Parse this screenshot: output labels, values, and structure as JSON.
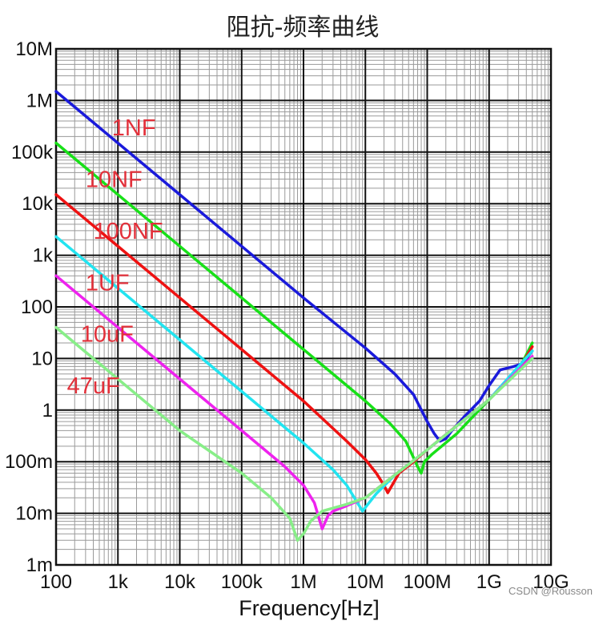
{
  "chart_data": {
    "type": "line",
    "title": "阻抗-频率曲线",
    "xlabel": "Frequency[Hz]",
    "ylabel": "",
    "xscale": "log",
    "yscale": "log",
    "xlim": [
      100,
      10000000000
    ],
    "ylim": [
      0.001,
      10000000
    ],
    "grid": true,
    "x_tick_labels": [
      "100",
      "1k",
      "10k",
      "100k",
      "1M",
      "10M",
      "100M",
      "1G",
      "10G"
    ],
    "y_tick_labels": [
      "1m",
      "10m",
      "100m",
      "1",
      "10",
      "100",
      "1k",
      "10k",
      "100k",
      "1M",
      "10M"
    ],
    "series": [
      {
        "name": "1NF",
        "color": "#1a1adb",
        "x": [
          100,
          10000,
          1000000,
          10000000,
          30000000,
          60000000,
          100000000,
          130000000,
          160000000,
          200000000,
          250000000,
          400000000,
          700000000,
          1000000000,
          1500000000,
          2500000000,
          3500000000,
          5000000000
        ],
        "y": [
          1500000,
          15000,
          150,
          16,
          5,
          2,
          0.6,
          0.35,
          0.25,
          0.28,
          0.4,
          0.75,
          1.5,
          3,
          6,
          7,
          8,
          14
        ]
      },
      {
        "name": "10NF",
        "color": "#18e018",
        "x": [
          100,
          10000,
          1000000,
          10000000,
          25000000,
          45000000,
          60000000,
          70000000,
          80000000,
          90000000,
          120000000,
          300000000,
          1000000000,
          3000000000,
          5000000000
        ],
        "y": [
          150000,
          1500,
          15,
          1.5,
          0.55,
          0.25,
          0.12,
          0.08,
          0.06,
          0.1,
          0.14,
          0.35,
          1.6,
          6,
          20
        ]
      },
      {
        "name": "100NF",
        "color": "#ee1111",
        "x": [
          100,
          10000,
          100000,
          1000000,
          5000000,
          10000000,
          15000000,
          20000000,
          23000000,
          27000000,
          35000000,
          60000000,
          100000000,
          300000000,
          1000000000,
          3000000000,
          5000000000
        ],
        "y": [
          15000,
          150,
          15,
          1.5,
          0.25,
          0.11,
          0.06,
          0.035,
          0.025,
          0.035,
          0.06,
          0.1,
          0.17,
          0.5,
          1.6,
          6,
          17
        ]
      },
      {
        "name": "1UF",
        "color": "#22e4f0",
        "x": [
          100,
          10000,
          100000,
          1000000,
          3000000,
          5000000,
          7000000,
          9000000,
          11000000,
          15000000,
          30000000,
          100000000,
          1000000000,
          5000000000
        ],
        "y": [
          2300,
          23,
          2.3,
          0.23,
          0.07,
          0.035,
          0.018,
          0.011,
          0.015,
          0.024,
          0.055,
          0.17,
          1.6,
          14
        ]
      },
      {
        "name": "10uF",
        "color": "#ee22ee",
        "x": [
          100,
          10000,
          100000,
          500000,
          1000000,
          1500000,
          2000000,
          2500000,
          3000000,
          5000000,
          10000000,
          100000000,
          1000000000,
          5000000000
        ],
        "y": [
          400,
          4,
          0.4,
          0.08,
          0.035,
          0.016,
          0.005,
          0.009,
          0.011,
          0.014,
          0.02,
          0.17,
          1.6,
          11
        ]
      },
      {
        "name": "47uF",
        "color": "#88ee88",
        "x": [
          100,
          10000,
          100000,
          300000,
          600000,
          800000,
          1000000,
          1300000,
          2000000,
          5000000,
          10000000,
          100000000,
          1000000000,
          5000000000
        ],
        "y": [
          40,
          0.4,
          0.06,
          0.02,
          0.008,
          0.003,
          0.004,
          0.007,
          0.011,
          0.015,
          0.02,
          0.17,
          1.6,
          10
        ]
      }
    ],
    "label_positions": [
      {
        "series": "1NF",
        "x": 800,
        "y": 300000
      },
      {
        "series": "10NF",
        "x": 300,
        "y": 30000
      },
      {
        "series": "100NF",
        "x": 400,
        "y": 3000
      },
      {
        "series": "1UF",
        "x": 300,
        "y": 300
      },
      {
        "series": "10uF",
        "x": 250,
        "y": 30
      },
      {
        "series": "47uF",
        "x": 150,
        "y": 3
      }
    ]
  },
  "watermark": "CSDN @Rousson"
}
